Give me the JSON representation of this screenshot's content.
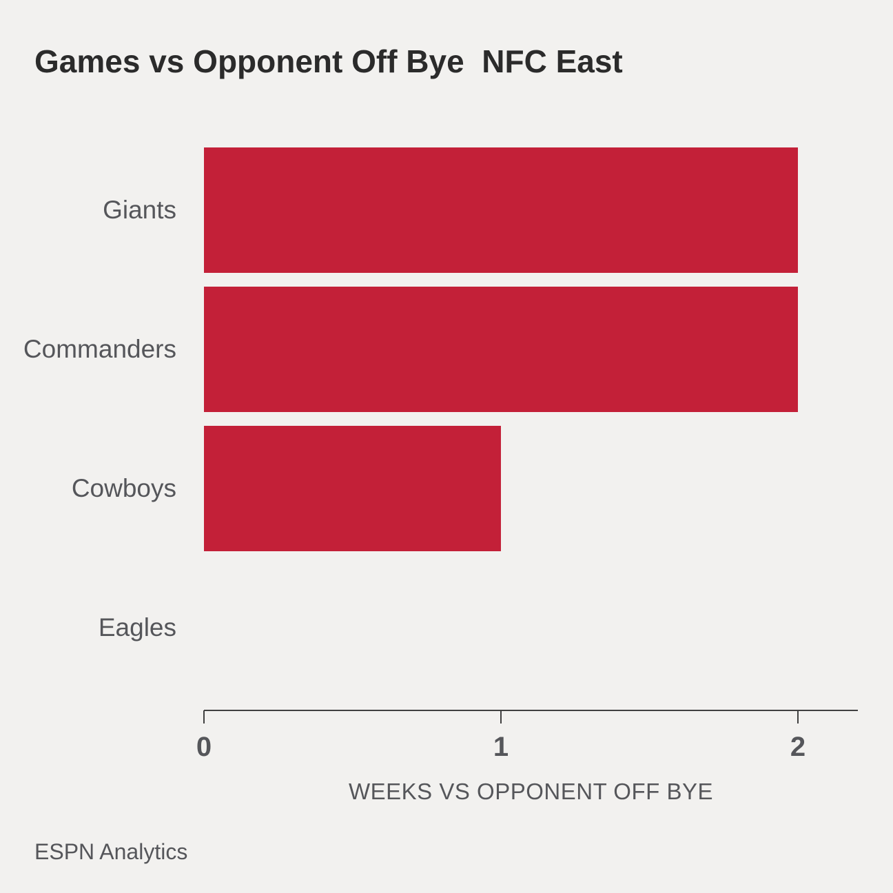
{
  "page": {
    "background": "#F2F1EF"
  },
  "chart_data": {
    "type": "bar",
    "orientation": "horizontal",
    "title": "Games vs Opponent Off Bye  NFC East",
    "categories": [
      "Giants",
      "Commanders",
      "Cowboys",
      "Eagles"
    ],
    "values": [
      2,
      2,
      1,
      0
    ],
    "xlabel": "WEEKS VS OPPONENT OFF BYE",
    "xticks": [
      "0",
      "1",
      "2"
    ],
    "xlim": [
      0,
      2
    ],
    "grid": false,
    "legend": false,
    "bar_color": "#C32038",
    "axis_color": "#404040",
    "text_color": "#55565A",
    "title_color": "#2B2B2B"
  },
  "footer": {
    "source_label": "ESPN Analytics"
  }
}
